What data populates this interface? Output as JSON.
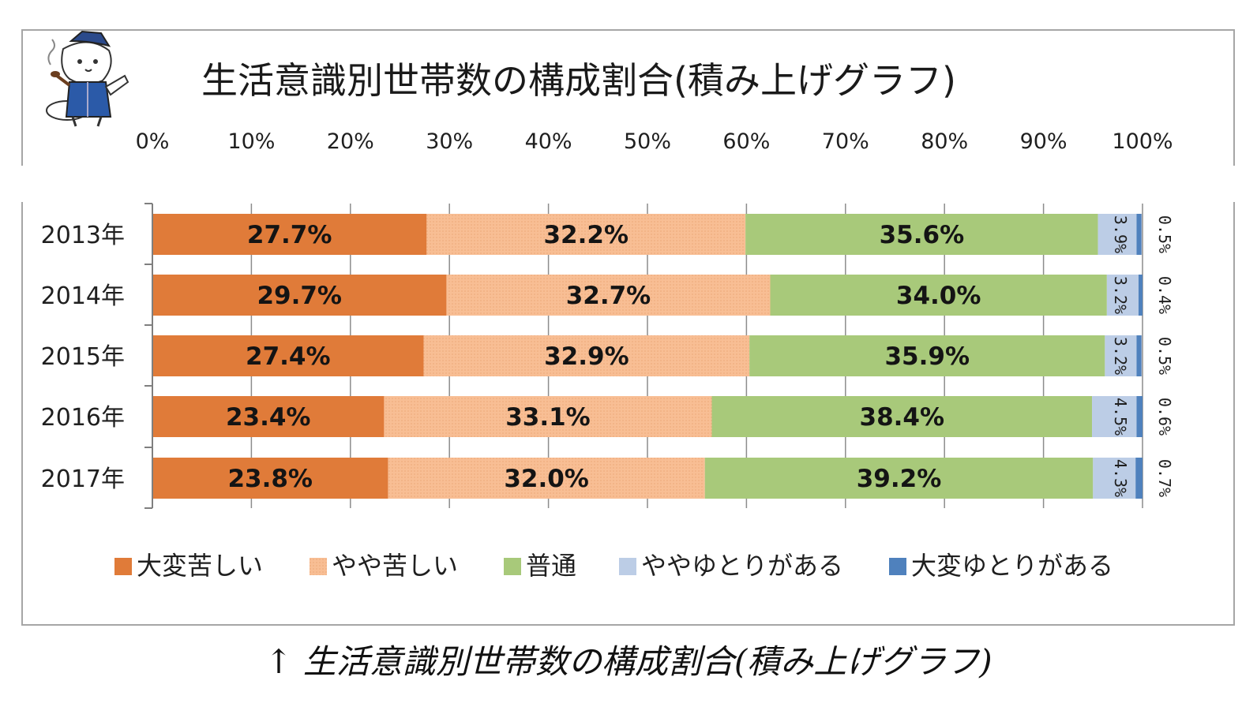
{
  "chart_data": {
    "type": "bar",
    "orientation": "horizontal",
    "stacked": true,
    "title": "生活意識別世帯数の構成割合(積み上げグラフ)",
    "categories": [
      "2013年",
      "2014年",
      "2015年",
      "2016年",
      "2017年"
    ],
    "series": [
      {
        "name": "大変苦しい",
        "color": "#e07b39",
        "values": [
          27.7,
          29.7,
          27.4,
          23.4,
          23.8
        ]
      },
      {
        "name": "やや苦しい",
        "color": "#f8be94",
        "values": [
          32.2,
          32.7,
          32.9,
          33.1,
          32.0
        ]
      },
      {
        "name": "普通",
        "color": "#a8c97a",
        "values": [
          35.6,
          34.0,
          35.9,
          38.4,
          39.2
        ]
      },
      {
        "name": "ややゆとりがある",
        "color": "#bccde6",
        "values": [
          3.9,
          3.2,
          3.2,
          4.5,
          4.3
        ]
      },
      {
        "name": "大変ゆとりがある",
        "color": "#4f81bd",
        "values": [
          0.5,
          0.4,
          0.5,
          0.6,
          0.7
        ]
      }
    ],
    "xlim": [
      0,
      100
    ],
    "x_ticks": [
      "0%",
      "10%",
      "20%",
      "30%",
      "40%",
      "50%",
      "60%",
      "70%",
      "80%",
      "90%",
      "100%"
    ],
    "grid": true,
    "legend": "bottom"
  },
  "caption": "↑ 生活意識別世帯数の構成割合(積み上げグラフ)"
}
